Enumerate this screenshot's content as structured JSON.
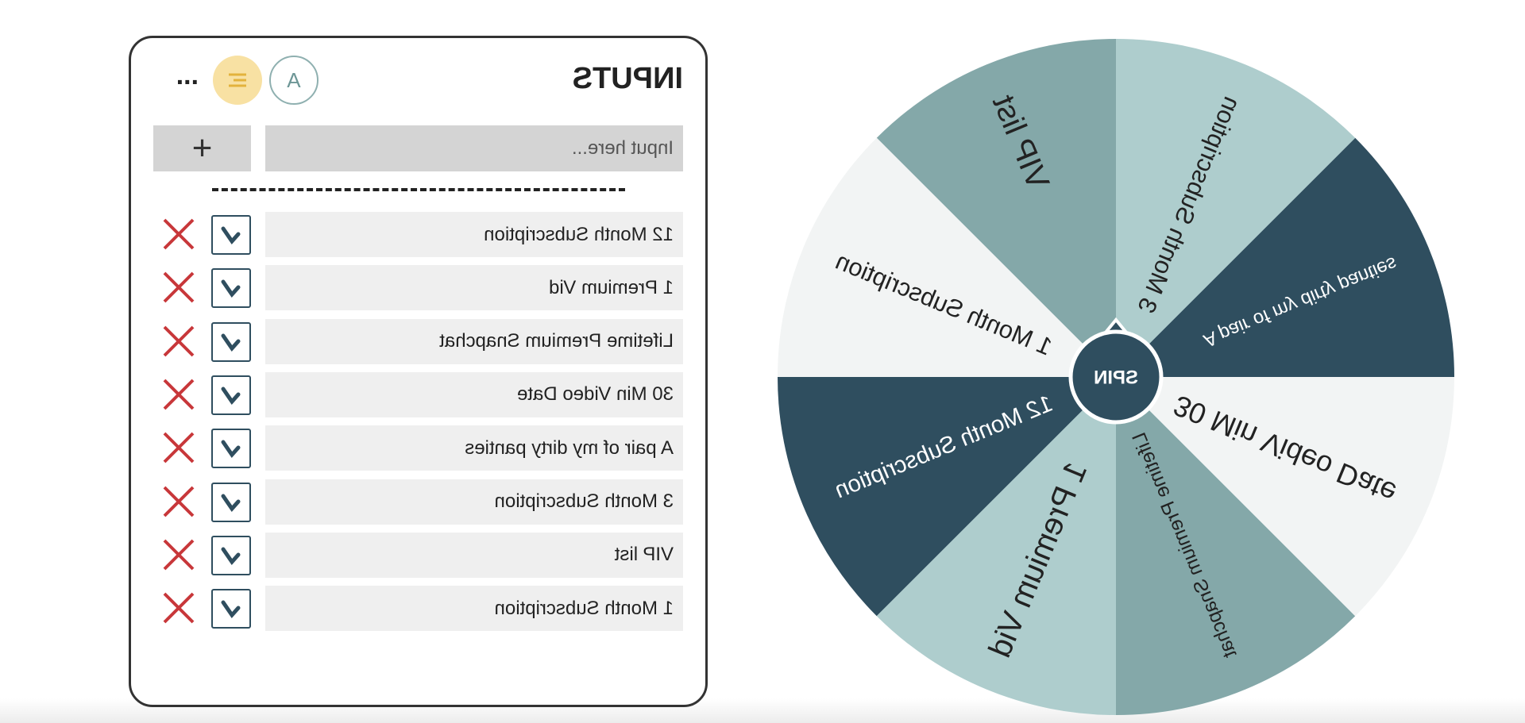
{
  "panel": {
    "title": "INPUTS",
    "avatar": "A",
    "menu": "...",
    "input_placeholder": "Input here...",
    "add_button": "+"
  },
  "entries": [
    "12 Month Subscription",
    "1 Premium Vid",
    "Lifetime Premium Snapchat",
    "30 Min Video Date",
    "A pair of my dirty panties",
    "3 Month Subscription",
    "VIP list",
    "1 Month Subscription"
  ],
  "wheel": {
    "spin": "SPIN",
    "colors": [
      "#2f4e5f",
      "#aecdcd",
      "#84a8a9",
      "#f2f4f4"
    ]
  }
}
